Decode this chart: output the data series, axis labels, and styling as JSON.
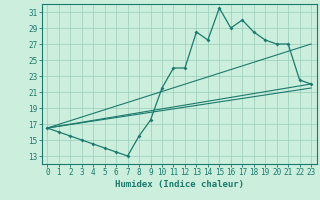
{
  "title": "",
  "xlabel": "Humidex (Indice chaleur)",
  "bg_color": "#cceedd",
  "grid_color": "#99ccbb",
  "line_color": "#1a7a6e",
  "xlim": [
    -0.5,
    23.5
  ],
  "ylim": [
    12,
    32
  ],
  "xticks": [
    0,
    1,
    2,
    3,
    4,
    5,
    6,
    7,
    8,
    9,
    10,
    11,
    12,
    13,
    14,
    15,
    16,
    17,
    18,
    19,
    20,
    21,
    22,
    23
  ],
  "yticks": [
    13,
    15,
    17,
    19,
    21,
    23,
    25,
    27,
    29,
    31
  ],
  "main_line": {
    "x": [
      0,
      1,
      2,
      3,
      4,
      5,
      6,
      7,
      8,
      9,
      10,
      11,
      12,
      13,
      14,
      15,
      16,
      17,
      18,
      19,
      20,
      21,
      22,
      23
    ],
    "y": [
      16.5,
      16.0,
      15.5,
      15.0,
      14.5,
      14.0,
      13.5,
      13.0,
      15.5,
      17.5,
      21.5,
      24.0,
      24.0,
      28.5,
      27.5,
      31.5,
      29.0,
      30.0,
      28.5,
      27.5,
      27.0,
      27.0,
      22.5,
      22.0
    ]
  },
  "regression_lines": [
    {
      "x": [
        0,
        23
      ],
      "y": [
        16.5,
        27.0
      ]
    },
    {
      "x": [
        0,
        23
      ],
      "y": [
        16.5,
        22.0
      ]
    },
    {
      "x": [
        0,
        23
      ],
      "y": [
        16.5,
        21.5
      ]
    }
  ],
  "xlabel_fontsize": 6.5,
  "tick_fontsize": 5.5
}
